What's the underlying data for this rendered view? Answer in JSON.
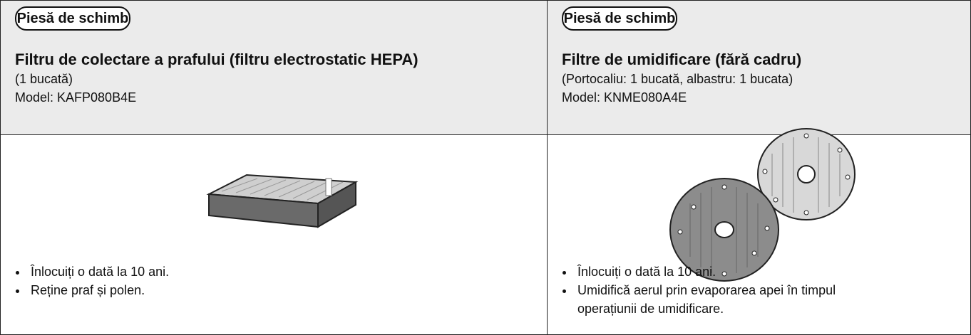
{
  "columns": [
    {
      "badge": "Piesă de schimb",
      "title": "Filtru de colectare a prafului (filtru electrostatic HEPA)",
      "quantity": "(1 bucată)",
      "model": "Model: KAFP080B4E",
      "notes": [
        "Înlocuiți o dată la 10 ani.",
        "Reține praf și polen."
      ]
    },
    {
      "badge": "Piesă de schimb",
      "title": "Filtre de umidificare (fără cadru)",
      "quantity": "(Portocaliu: 1 bucată, albastru: 1 bucata)",
      "model": "Model: KNME080A4E",
      "notes": [
        "Înlocuiți o dată la 10 ani.",
        "Umidifică aerul prin evaporarea apei în timpul operațiunii de umidificare."
      ]
    }
  ]
}
